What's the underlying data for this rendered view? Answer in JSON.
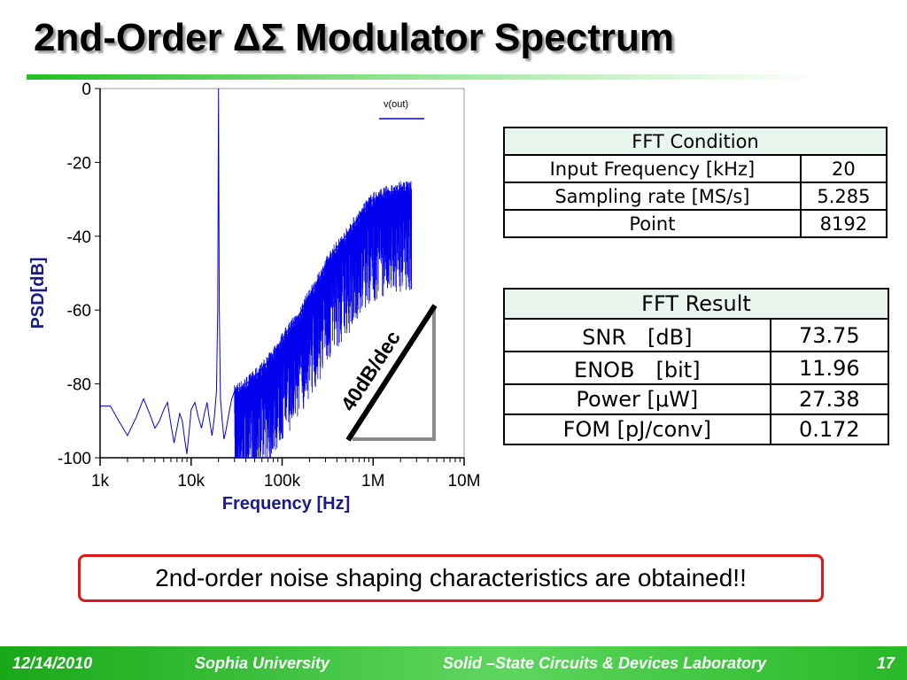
{
  "slide": {
    "title": "2nd-Order ΔΣ Modulator Spectrum",
    "note": "2nd-order noise shaping characteristics are obtained!!"
  },
  "chart_data": {
    "type": "line",
    "x_scale": "log",
    "xlabel": "Frequency [Hz]",
    "ylabel": "PSD[dB]",
    "xlim": [
      1000,
      10000000
    ],
    "ylim": [
      -100,
      0
    ],
    "x_ticks": [
      {
        "value": 1000,
        "label": "1k"
      },
      {
        "value": 10000,
        "label": "10k"
      },
      {
        "value": 100000,
        "label": "100k"
      },
      {
        "value": 1000000,
        "label": "1M"
      },
      {
        "value": 10000000,
        "label": "10M"
      }
    ],
    "y_ticks": [
      {
        "value": 0,
        "label": "0"
      },
      {
        "value": -20,
        "label": "-20"
      },
      {
        "value": -40,
        "label": "-40"
      },
      {
        "value": -60,
        "label": "-60"
      },
      {
        "value": -80,
        "label": "-80"
      },
      {
        "value": -100,
        "label": "-100"
      }
    ],
    "legend": "top-right",
    "grid": false,
    "series": [
      {
        "name": "v(out)",
        "color": "#0000ee",
        "points": [
          [
            1000,
            -86
          ],
          [
            1300,
            -86
          ],
          [
            1600,
            -90
          ],
          [
            2000,
            -94
          ],
          [
            2500,
            -89
          ],
          [
            3000,
            -84
          ],
          [
            3500,
            -88
          ],
          [
            4000,
            -92
          ],
          [
            4500,
            -90
          ],
          [
            5000,
            -87
          ],
          [
            5500,
            -85
          ],
          [
            6000,
            -91
          ],
          [
            6500,
            -96
          ],
          [
            7000,
            -92
          ],
          [
            7500,
            -88
          ],
          [
            8000,
            -90
          ],
          [
            8500,
            -95
          ],
          [
            9000,
            -99
          ],
          [
            9500,
            -93
          ],
          [
            10000,
            -87
          ],
          [
            11000,
            -85
          ],
          [
            12000,
            -89
          ],
          [
            13000,
            -92
          ],
          [
            14000,
            -88
          ],
          [
            15000,
            -85
          ],
          [
            16000,
            -90
          ],
          [
            17000,
            -94
          ],
          [
            18000,
            -89
          ],
          [
            19000,
            -82
          ],
          [
            19600,
            -60
          ],
          [
            20000,
            0
          ],
          [
            20400,
            -60
          ],
          [
            21000,
            -84
          ],
          [
            22000,
            -90
          ],
          [
            23000,
            -95
          ],
          [
            24000,
            -93
          ],
          [
            26000,
            -88
          ],
          [
            28000,
            -84
          ],
          [
            30000,
            -82
          ],
          [
            35000,
            -81
          ],
          [
            40000,
            -80
          ],
          [
            50000,
            -78
          ],
          [
            60000,
            -76
          ],
          [
            70000,
            -74
          ],
          [
            80000,
            -72
          ],
          [
            90000,
            -70
          ],
          [
            100000,
            -68
          ],
          [
            120000,
            -65
          ],
          [
            150000,
            -62
          ],
          [
            180000,
            -58
          ],
          [
            200000,
            -56
          ],
          [
            250000,
            -52
          ],
          [
            300000,
            -48
          ],
          [
            350000,
            -45
          ],
          [
            400000,
            -43
          ],
          [
            500000,
            -40
          ],
          [
            600000,
            -37
          ],
          [
            700000,
            -35
          ],
          [
            800000,
            -33
          ],
          [
            900000,
            -31
          ],
          [
            1000000,
            -30
          ],
          [
            1200000,
            -29
          ],
          [
            1500000,
            -28
          ],
          [
            1800000,
            -28
          ],
          [
            2000000,
            -27
          ],
          [
            2400000,
            -27
          ],
          [
            2640000,
            -27
          ]
        ]
      }
    ],
    "annotations": [
      {
        "text": "40dB/dec"
      }
    ]
  },
  "fft_condition": {
    "header": "FFT Condition",
    "rows": [
      {
        "label": "Input Frequency [kHz]",
        "value": "20"
      },
      {
        "label": "Sampling rate [MS/s]",
        "value": "5.285"
      },
      {
        "label": "Point",
        "value": "8192"
      }
    ]
  },
  "fft_result": {
    "header": "FFT Result",
    "rows": [
      {
        "label": "SNR　[dB]",
        "value": "73.75"
      },
      {
        "label": "ENOB　[bit]",
        "value": "11.96"
      },
      {
        "label": "Power [μW]",
        "value": "27.38"
      },
      {
        "label": "FOM [pJ/conv]",
        "value": "0.172"
      }
    ]
  },
  "footer": {
    "date": "12/14/2010",
    "university": "Sophia University",
    "lab": "Solid –State Circuits & Devices Laboratory",
    "page": "17"
  },
  "colors": {
    "accent_green": "#22c022",
    "series_blue": "#0000ee",
    "note_border": "#e01818",
    "label_blue": "#1a1a8c"
  }
}
